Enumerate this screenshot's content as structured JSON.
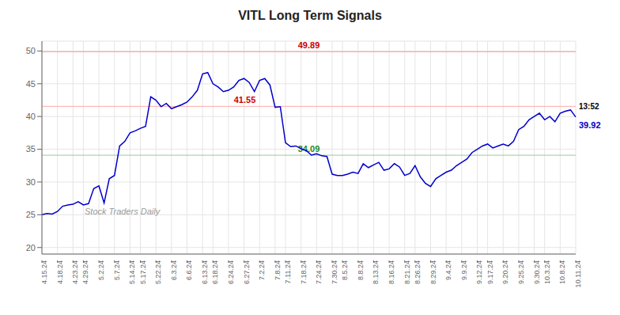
{
  "chart_data": {
    "type": "line",
    "title": "VITL Long Term Signals",
    "color": "#0000cc",
    "grid": true,
    "ylim": [
      19.0,
      51.5
    ],
    "yticks": [
      20,
      25,
      30,
      35,
      40,
      45,
      50
    ],
    "categories": [
      "4.15.24",
      null,
      null,
      "4.18.24",
      null,
      null,
      "4.23.24",
      null,
      "4.29.24",
      null,
      null,
      "5.2.24",
      null,
      null,
      "5.7.24",
      null,
      null,
      "5.14.24",
      null,
      "5.17.24",
      null,
      null,
      "5.22.24",
      null,
      null,
      "6.3.24",
      null,
      null,
      "6.6.24",
      null,
      null,
      "6.13.24",
      null,
      "6.18.24",
      null,
      null,
      "6.24.24",
      null,
      null,
      "6.27.24",
      null,
      null,
      "7.2.24",
      null,
      null,
      "7.8.24",
      null,
      "7.11.24",
      null,
      null,
      "7.18.24",
      null,
      null,
      "7.24.24",
      null,
      null,
      "7.30.24",
      null,
      "8.5.24",
      null,
      null,
      "8.8.24",
      null,
      null,
      "8.13.24",
      null,
      null,
      "8.16.24",
      null,
      null,
      "8.21.24",
      null,
      "8.26.24",
      null,
      null,
      "8.29.24",
      null,
      null,
      "9.4.24",
      null,
      null,
      "9.9.24",
      null,
      null,
      "9.12.24",
      null,
      "9.17.24",
      null,
      null,
      "9.20.24",
      null,
      null,
      "9.25.24",
      null,
      null,
      "9.30.24",
      null,
      "10.3.24",
      null,
      null,
      "10.8.24",
      null,
      null,
      "10.11.24"
    ],
    "values": [
      25.0,
      25.2,
      25.1,
      25.5,
      26.3,
      26.5,
      26.6,
      27.0,
      26.5,
      26.7,
      29.0,
      29.4,
      26.8,
      30.5,
      31.0,
      35.5,
      36.2,
      37.5,
      37.8,
      38.2,
      38.5,
      43.0,
      42.5,
      41.5,
      42.0,
      41.2,
      41.5,
      41.8,
      42.2,
      43.0,
      44.0,
      46.5,
      46.7,
      45.0,
      44.5,
      43.8,
      44.0,
      44.5,
      45.5,
      45.8,
      45.2,
      43.8,
      45.5,
      45.8,
      44.8,
      41.4,
      41.5,
      36.0,
      35.4,
      35.5,
      35.1,
      34.8,
      34.1,
      34.3,
      34.0,
      33.9,
      31.2,
      31.0,
      31.0,
      31.2,
      31.5,
      31.3,
      32.8,
      32.2,
      32.6,
      33.0,
      31.8,
      32.0,
      32.8,
      32.3,
      31.0,
      31.3,
      32.5,
      30.8,
      29.8,
      29.3,
      30.5,
      31.0,
      31.5,
      31.8,
      32.5,
      33.0,
      33.5,
      34.5,
      35.0,
      35.5,
      35.8,
      35.2,
      35.5,
      35.8,
      35.5,
      36.2,
      38.0,
      38.5,
      39.5,
      40.0,
      40.5,
      39.5,
      40.0,
      39.2,
      40.5,
      40.8,
      41.0,
      39.92
    ],
    "hlines": [
      {
        "value": 49.89,
        "label": "49.89",
        "color": "#ff9999",
        "label_color": "#cc0000"
      },
      {
        "value": 41.55,
        "label": "41.55",
        "color": "#ffaaaa",
        "label_color": "#cc0000"
      },
      {
        "value": 34.09,
        "label": "34.09",
        "color": "#99cc99",
        "label_color": "#228B22"
      }
    ],
    "watermark": "Stock Traders Daily",
    "end_labels": [
      "13:52",
      "39.92"
    ]
  }
}
